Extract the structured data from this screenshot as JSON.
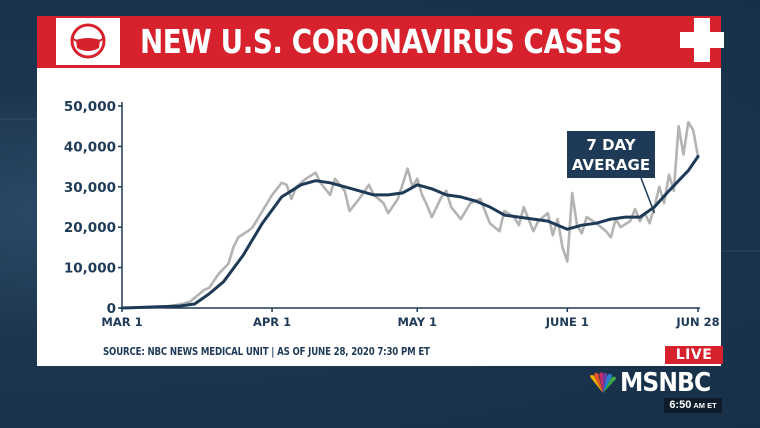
{
  "title": "NEW U.S. CORONAVIRUS CASES",
  "source": "SOURCE: NBC NEWS MEDICAL UNIT | AS OF JUNE 28, 2020 7:30 PM ET",
  "icons": {
    "mask": "face-mask-icon",
    "cross": "medical-cross-icon",
    "peacock": "peacock-logo-icon"
  },
  "colors": {
    "title_bar": "#d7222e",
    "daily_line": "#b3b3b3",
    "average_line": "#1e3a57",
    "annotation_box": "#1e3a57"
  },
  "broadcast": {
    "live_label": "LIVE",
    "network": "MSNBC",
    "time": "6:50",
    "ampm": "AM ET"
  },
  "chart_data": {
    "type": "line",
    "title": "NEW U.S. CORONAVIRUS CASES",
    "xlabel": "",
    "ylabel": "",
    "ylim": [
      0,
      50000
    ],
    "xlim": [
      "2020-03-01",
      "2020-06-28"
    ],
    "yticks": [
      "0",
      "10,000",
      "20,000",
      "30,000",
      "40,000",
      "50,000"
    ],
    "xticks": [
      {
        "date": "2020-03-01",
        "label": "MAR 1"
      },
      {
        "date": "2020-04-01",
        "label": "APR 1"
      },
      {
        "date": "2020-05-01",
        "label": "MAY 1"
      },
      {
        "date": "2020-06-01",
        "label": "JUNE 1"
      },
      {
        "date": "2020-06-28",
        "label": "JUN 28"
      }
    ],
    "annotation": {
      "text_lines": [
        "7 DAY",
        "AVERAGE"
      ],
      "points_to": "2020-06-19"
    },
    "grid": false,
    "series": [
      {
        "kind": "daily",
        "points": [
          [
            "2020-03-01",
            0
          ],
          [
            "2020-03-05",
            100
          ],
          [
            "2020-03-10",
            300
          ],
          [
            "2020-03-13",
            900
          ],
          [
            "2020-03-15",
            1500
          ],
          [
            "2020-03-17",
            3500
          ],
          [
            "2020-03-18",
            4500
          ],
          [
            "2020-03-19",
            5000
          ],
          [
            "2020-03-21",
            8500
          ],
          [
            "2020-03-23",
            11000
          ],
          [
            "2020-03-24",
            15000
          ],
          [
            "2020-03-25",
            17500
          ],
          [
            "2020-03-27",
            19000
          ],
          [
            "2020-03-28",
            20000
          ],
          [
            "2020-03-30",
            24000
          ],
          [
            "2020-04-01",
            28000
          ],
          [
            "2020-04-03",
            31000
          ],
          [
            "2020-04-04",
            30500
          ],
          [
            "2020-04-05",
            27000
          ],
          [
            "2020-04-06",
            30000
          ],
          [
            "2020-04-08",
            32000
          ],
          [
            "2020-04-10",
            33500
          ],
          [
            "2020-04-11",
            31000
          ],
          [
            "2020-04-13",
            28000
          ],
          [
            "2020-04-14",
            32000
          ],
          [
            "2020-04-16",
            29000
          ],
          [
            "2020-04-17",
            24000
          ],
          [
            "2020-04-19",
            27000
          ],
          [
            "2020-04-21",
            30500
          ],
          [
            "2020-04-22",
            28000
          ],
          [
            "2020-04-24",
            26000
          ],
          [
            "2020-04-25",
            23500
          ],
          [
            "2020-04-27",
            27000
          ],
          [
            "2020-04-29",
            34500
          ],
          [
            "2020-04-30",
            30000
          ],
          [
            "2020-05-01",
            32000
          ],
          [
            "2020-05-02",
            28000
          ],
          [
            "2020-05-03",
            25500
          ],
          [
            "2020-05-04",
            22500
          ],
          [
            "2020-05-06",
            27500
          ],
          [
            "2020-05-07",
            29000
          ],
          [
            "2020-05-08",
            25000
          ],
          [
            "2020-05-10",
            22000
          ],
          [
            "2020-05-12",
            26000
          ],
          [
            "2020-05-14",
            27000
          ],
          [
            "2020-05-15",
            24000
          ],
          [
            "2020-05-16",
            21000
          ],
          [
            "2020-05-18",
            19000
          ],
          [
            "2020-05-19",
            24000
          ],
          [
            "2020-05-21",
            22500
          ],
          [
            "2020-05-22",
            20500
          ],
          [
            "2020-05-23",
            25000
          ],
          [
            "2020-05-25",
            19000
          ],
          [
            "2020-05-26",
            21500
          ],
          [
            "2020-05-28",
            23500
          ],
          [
            "2020-05-29",
            18000
          ],
          [
            "2020-05-30",
            22000
          ],
          [
            "2020-05-31",
            15000
          ],
          [
            "2020-06-01",
            11500
          ],
          [
            "2020-06-02",
            28500
          ],
          [
            "2020-06-03",
            20500
          ],
          [
            "2020-06-04",
            18500
          ],
          [
            "2020-06-05",
            22500
          ],
          [
            "2020-06-07",
            21000
          ],
          [
            "2020-06-09",
            19000
          ],
          [
            "2020-06-10",
            17500
          ],
          [
            "2020-06-11",
            22000
          ],
          [
            "2020-06-12",
            20000
          ],
          [
            "2020-06-14",
            21500
          ],
          [
            "2020-06-15",
            24500
          ],
          [
            "2020-06-16",
            21500
          ],
          [
            "2020-06-17",
            23500
          ],
          [
            "2020-06-18",
            21000
          ],
          [
            "2020-06-19",
            25000
          ],
          [
            "2020-06-20",
            30000
          ],
          [
            "2020-06-21",
            26000
          ],
          [
            "2020-06-22",
            33000
          ],
          [
            "2020-06-23",
            29000
          ],
          [
            "2020-06-24",
            45000
          ],
          [
            "2020-06-25",
            38000
          ],
          [
            "2020-06-26",
            46000
          ],
          [
            "2020-06-27",
            44000
          ],
          [
            "2020-06-28",
            37500
          ]
        ]
      },
      {
        "kind": "seven_day_average",
        "points": [
          [
            "2020-03-01",
            0
          ],
          [
            "2020-03-13",
            500
          ],
          [
            "2020-03-16",
            1000
          ],
          [
            "2020-03-19",
            3500
          ],
          [
            "2020-03-22",
            6500
          ],
          [
            "2020-03-26",
            13000
          ],
          [
            "2020-03-30",
            21000
          ],
          [
            "2020-04-03",
            27500
          ],
          [
            "2020-04-07",
            30500
          ],
          [
            "2020-04-10",
            31500
          ],
          [
            "2020-04-13",
            31000
          ],
          [
            "2020-04-16",
            30000
          ],
          [
            "2020-04-19",
            29000
          ],
          [
            "2020-04-22",
            28000
          ],
          [
            "2020-04-25",
            28000
          ],
          [
            "2020-04-28",
            28500
          ],
          [
            "2020-05-01",
            30500
          ],
          [
            "2020-05-04",
            29500
          ],
          [
            "2020-05-07",
            28000
          ],
          [
            "2020-05-10",
            27500
          ],
          [
            "2020-05-13",
            26500
          ],
          [
            "2020-05-16",
            25000
          ],
          [
            "2020-05-19",
            23000
          ],
          [
            "2020-05-22",
            22500
          ],
          [
            "2020-05-25",
            22000
          ],
          [
            "2020-05-28",
            21500
          ],
          [
            "2020-05-31",
            20000
          ],
          [
            "2020-06-01",
            19500
          ],
          [
            "2020-06-04",
            20500
          ],
          [
            "2020-06-07",
            21000
          ],
          [
            "2020-06-10",
            22000
          ],
          [
            "2020-06-13",
            22500
          ],
          [
            "2020-06-16",
            22500
          ],
          [
            "2020-06-19",
            25000
          ],
          [
            "2020-06-22",
            29000
          ],
          [
            "2020-06-24",
            31500
          ],
          [
            "2020-06-26",
            34000
          ],
          [
            "2020-06-28",
            37500
          ]
        ]
      }
    ]
  }
}
